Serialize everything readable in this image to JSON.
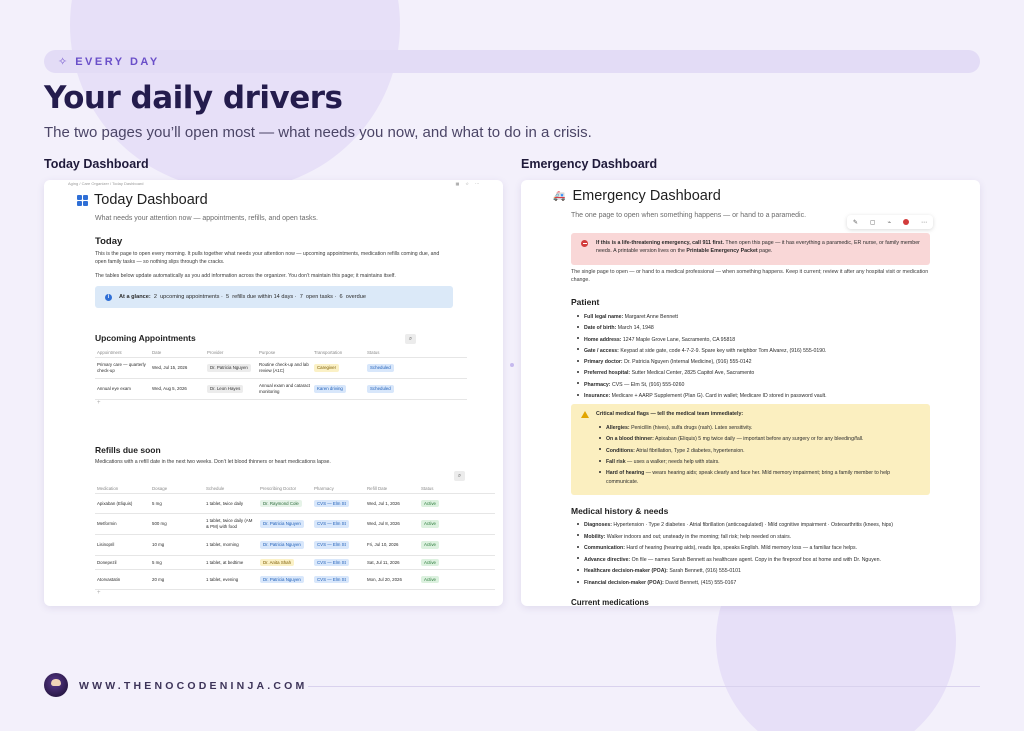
{
  "eyebrow": {
    "icon": "sparkle-icon",
    "label": "EVERY DAY"
  },
  "title": "Your daily drivers",
  "subtitle": "The two pages you’ll open most — what needs you now, and what to do in a crisis.",
  "left": {
    "label": "Today Dashboard",
    "breadcrumb": "Aging / Care Organizer / Today Dashboard",
    "page_title": "Today Dashboard",
    "page_desc": "What needs your attention now — appointments, refills, and open tasks.",
    "today_heading": "Today",
    "para1": "This is the page to open every morning. It pulls together what needs your attention now — upcoming appointments, medication refills coming due, and open family tasks — so nothing slips through the cracks.",
    "para2": "The tables below update automatically as you add information across the organizer. You don’t maintain this page; it maintains itself.",
    "glance": {
      "label": "At a glance:",
      "n1": "2",
      "t1": "upcoming appointments ·",
      "n2": "5",
      "t2": "refills due within 14 days ·",
      "n3": "7",
      "t3": "open tasks ·",
      "n4": "6",
      "t4": "overdue"
    },
    "appointments": {
      "heading": "Upcoming Appointments",
      "columns": [
        "Appointment",
        "Date",
        "Provider",
        "Purpose",
        "Transportation",
        "Status"
      ],
      "rows": [
        {
          "appointment": "Primary care — quarterly check-up",
          "date": "Wed, Jul 15, 2026",
          "provider": "Dr. Patricia Nguyen",
          "purpose": "Routine check-up and lab review (A1C)",
          "transport": "Caregiver",
          "status": "Scheduled"
        },
        {
          "appointment": "Annual eye exam",
          "date": "Wed, Aug 5, 2026",
          "provider": "Dr. Leon Hayes",
          "purpose": "Annual exam and cataract monitoring",
          "transport": "Karen driving",
          "status": "Scheduled"
        }
      ],
      "add": "+"
    },
    "refills": {
      "heading": "Refills due soon",
      "desc": "Medications with a refill date in the next two weeks. Don’t let blood thinners or heart medications lapse.",
      "columns": [
        "Medication",
        "Dosage",
        "Schedule",
        "Prescribing Doctor",
        "Pharmacy",
        "Refill Date",
        "Status"
      ],
      "rows": [
        {
          "med": "Apixaban (Eliquis)",
          "dosage": "5 mg",
          "schedule": "1 tablet, twice daily",
          "doctor": "Dr. Raymond Cole",
          "pharmacy": "CVS — Elm St",
          "refill": "Wed, Jul 1, 2026",
          "status": "Active"
        },
        {
          "med": "Metformin",
          "dosage": "500 mg",
          "schedule": "1 tablet, twice daily (AM & PM) with food",
          "doctor": "Dr. Patricia Nguyen",
          "pharmacy": "CVS — Elm St",
          "refill": "Wed, Jul 8, 2026",
          "status": "Active"
        },
        {
          "med": "Lisinopril",
          "dosage": "10 mg",
          "schedule": "1 tablet, morning",
          "doctor": "Dr. Patricia Nguyen",
          "pharmacy": "CVS — Elm St",
          "refill": "Fri, Jul 10, 2026",
          "status": "Active"
        },
        {
          "med": "Donepezil",
          "dosage": "5 mg",
          "schedule": "1 tablet, at bedtime",
          "doctor": "Dr. Anita Shah",
          "pharmacy": "CVS — Elm St",
          "refill": "Sat, Jul 11, 2026",
          "status": "Active"
        },
        {
          "med": "Atorvastatin",
          "dosage": "20 mg",
          "schedule": "1 tablet, evening",
          "doctor": "Dr. Patricia Nguyen",
          "pharmacy": "CVS — Elm St",
          "refill": "Mon, Jul 20, 2026",
          "status": "Active"
        }
      ],
      "add": "+"
    }
  },
  "right": {
    "label": "Emergency Dashboard",
    "page_title": "Emergency Dashboard",
    "page_desc": "The one page to open when something happens — or hand to a paramedic.",
    "alert": {
      "bold1": "If this is a life-threatening emergency, call 911 first.",
      "text1": " Then open this page — it has everything a paramedic, ER nurse, or family member needs. A printable version lives on the ",
      "bold2": "Printable Emergency Packet",
      "text2": " page."
    },
    "para": "The single page to open — or hand to a medical professional — when something happens. Keep it current; review it after any hospital visit or medication change.",
    "patient_heading": "Patient",
    "patient": [
      {
        "k": "Full legal name:",
        "v": " Margaret Anne Bennett"
      },
      {
        "k": "Date of birth:",
        "v": " March 14, 1948"
      },
      {
        "k": "Home address:",
        "v": " 1247 Maple Grove Lane, Sacramento, CA 95818"
      },
      {
        "k": "Gate / access:",
        "v": " Keypad at side gate, code 4-7-2-9. Spare key with neighbor Tom Alvarez, (916) 555-0190."
      },
      {
        "k": "Primary doctor:",
        "v": " Dr. Patricia Nguyen (Internal Medicine), (916) 555-0142"
      },
      {
        "k": "Preferred hospital:",
        "v": " Sutter Medical Center, 2825 Capitol Ave, Sacramento"
      },
      {
        "k": "Pharmacy:",
        "v": " CVS — Elm St, (916) 555-0260"
      },
      {
        "k": "Insurance:",
        "v": " Medicare + AARP Supplement (Plan G). Card in wallet; Medicare ID stored in password vault."
      }
    ],
    "flags": {
      "title": "Critical medical flags — tell the medical team immediately:",
      "items": [
        {
          "k": "Allergies:",
          "v": " Penicillin (hives), sulfa drugs (rash). Latex sensitivity."
        },
        {
          "k": "On a blood thinner:",
          "v": " Apixaban (Eliquis) 5 mg twice daily — important before any surgery or for any bleeding/fall."
        },
        {
          "k": "Conditions:",
          "v": " Atrial fibrillation, Type 2 diabetes, hypertension."
        },
        {
          "k": "Fall risk",
          "v": " — uses a walker; needs help with stairs."
        },
        {
          "k": "Hard of hearing",
          "v": " — wears hearing aids; speak clearly and face her. Mild memory impairment; bring a family member to help communicate."
        }
      ]
    },
    "history_heading": "Medical history & needs",
    "history": [
      {
        "k": "Diagnoses:",
        "v": " Hypertension · Type 2 diabetes · Atrial fibrillation (anticoagulated) · Mild cognitive impairment · Osteoarthritis (knees, hips)"
      },
      {
        "k": "Mobility:",
        "v": " Walker indoors and out; unsteady in the morning; fall risk; help needed on stairs."
      },
      {
        "k": "Communication:",
        "v": " Hard of hearing (hearing aids), reads lips, speaks English. Mild memory loss — a familiar face helps."
      },
      {
        "k": "Advance directive:",
        "v": " On file — names Sarah Bennett as healthcare agent. Copy in the fireproof box at home and with Dr. Nguyen."
      },
      {
        "k": "Healthcare decision-maker (POA):",
        "v": " Sarah Bennett, (916) 555-0101"
      },
      {
        "k": "Financial decision-maker (POA):",
        "v": " David Bennett, (415) 555-0167"
      }
    ],
    "meds_heading": "Current medications"
  },
  "footer": {
    "url": "WWW.THENOCODENINJA.COM"
  }
}
